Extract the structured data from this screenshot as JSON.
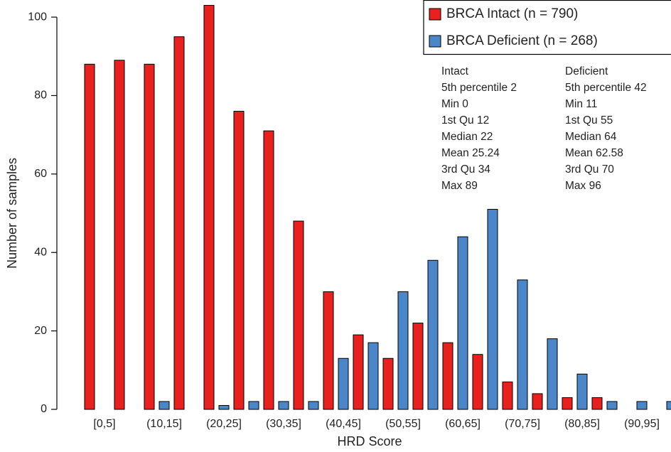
{
  "chart_data": {
    "type": "bar",
    "x_label": "HRD Score",
    "y_label": "Number of samples",
    "categories": [
      "[0,5]",
      null,
      "(10,15]",
      null,
      "(20,25]",
      null,
      "(30,35]",
      null,
      "(40,45]",
      null,
      "(50,55]",
      null,
      "(60,65]",
      null,
      "(70,75]",
      null,
      "(80,85]",
      null,
      "(90,95]",
      null
    ],
    "series": [
      {
        "name": "BRCA Intact (n = 790)",
        "color": "#e8211f",
        "values": [
          88,
          89,
          88,
          95,
          103,
          76,
          71,
          48,
          30,
          19,
          13,
          22,
          17,
          14,
          7,
          4,
          3,
          3,
          0,
          0
        ]
      },
      {
        "name": "BRCA Deficient (n = 268)",
        "color": "#4a86c8",
        "values": [
          0,
          0,
          2,
          0,
          1,
          2,
          2,
          2,
          13,
          17,
          30,
          38,
          44,
          51,
          33,
          18,
          9,
          2,
          2,
          2
        ]
      }
    ],
    "ylim": [
      0,
      104
    ],
    "yticks": [
      0,
      20,
      40,
      60,
      80,
      100
    ],
    "legend": "top-right",
    "annotations": [
      [
        "Intact",
        "5th percentile 2",
        "Min 0",
        "1st Qu 12",
        "Median 22",
        "Mean 25.24",
        "3rd Qu 34",
        "Max 89"
      ],
      [
        "Deficient",
        "5th percentile 42",
        "Min 11",
        "1st Qu 55",
        "Median 64",
        "Mean 62.58",
        "3rd Qu 70",
        "Max 96"
      ]
    ]
  }
}
